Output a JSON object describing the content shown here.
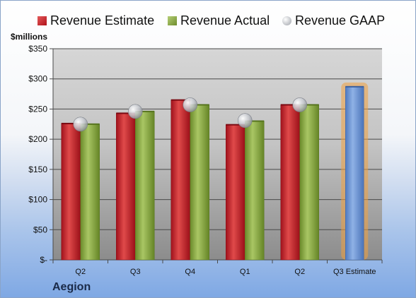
{
  "chart_data": {
    "type": "bar",
    "company": "Aegion",
    "unit_label": "$millions",
    "ylim": [
      0,
      350
    ],
    "yticks": [
      {
        "value": 0,
        "label": "$-"
      },
      {
        "value": 50,
        "label": "$50"
      },
      {
        "value": 100,
        "label": "$100"
      },
      {
        "value": 150,
        "label": "$150"
      },
      {
        "value": 200,
        "label": "$200"
      },
      {
        "value": 250,
        "label": "$250"
      },
      {
        "value": 300,
        "label": "$300"
      },
      {
        "value": 350,
        "label": "$350"
      }
    ],
    "categories": [
      "Q2",
      "Q3",
      "Q4",
      "Q1",
      "Q2",
      "Q3 Estimate"
    ],
    "series": [
      {
        "name": "Revenue Estimate",
        "kind": "bar",
        "color": "#c0202a",
        "values": [
          226,
          243,
          265,
          224,
          257,
          null
        ]
      },
      {
        "name": "Revenue Actual",
        "kind": "bar",
        "color": "#86a83e",
        "values": [
          225,
          246,
          257,
          230,
          257,
          287
        ]
      },
      {
        "name": "Revenue GAAP",
        "kind": "marker",
        "color": "#b8bcc4",
        "values": [
          225,
          246,
          257,
          231,
          257,
          null
        ]
      }
    ],
    "estimate_bar": {
      "category": "Q3 Estimate",
      "value": 287,
      "color": "#6f97d4",
      "glow": "#f0a040"
    },
    "grid": true,
    "legend": "top"
  }
}
